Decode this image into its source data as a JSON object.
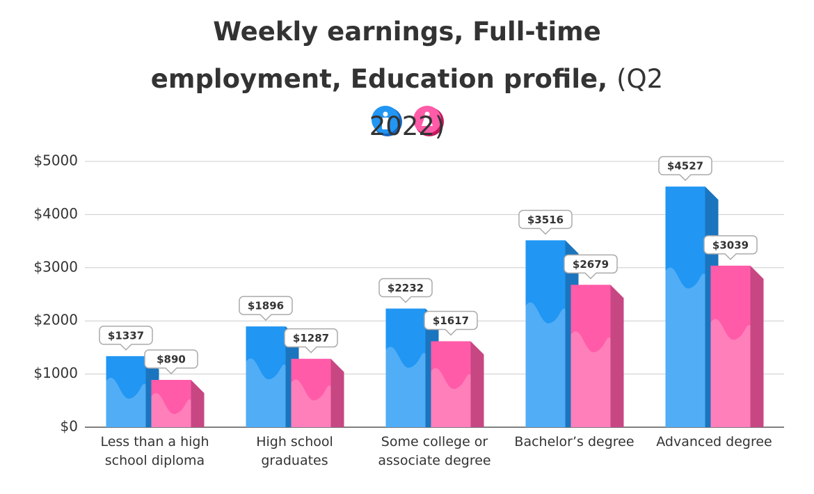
{
  "chart_data": {
    "type": "bar",
    "title": "Weekly earnings, Full-time employment, Education profile,",
    "subtitle": "(Q2 2022)",
    "categories": [
      "Less than a high school diploma",
      "High school graduates",
      "Some college or associate degree",
      "Bachelor’s degree",
      "Advanced degree"
    ],
    "series": [
      {
        "color": "#2196f3",
        "values": [
          1337,
          1896,
          2232,
          3516,
          4527
        ],
        "value_labels": [
          "$1337",
          "$1896",
          "$2232",
          "$3516",
          "$4527"
        ]
      },
      {
        "color": "#ff5ba8",
        "values": [
          890,
          1287,
          1617,
          2679,
          3039
        ],
        "value_labels": [
          "$890",
          "$1287",
          "$1617",
          "$2679",
          "$3039"
        ]
      }
    ],
    "ylim": [
      0,
      5000
    ],
    "yticks": [
      {
        "value": 0,
        "label": "$0"
      },
      {
        "value": 1000,
        "label": "$1000"
      },
      {
        "value": 2000,
        "label": "$2000"
      },
      {
        "value": 3000,
        "label": "$3000"
      },
      {
        "value": 4000,
        "label": "$4000"
      },
      {
        "value": 5000,
        "label": "$5000"
      }
    ],
    "grid": true
  }
}
